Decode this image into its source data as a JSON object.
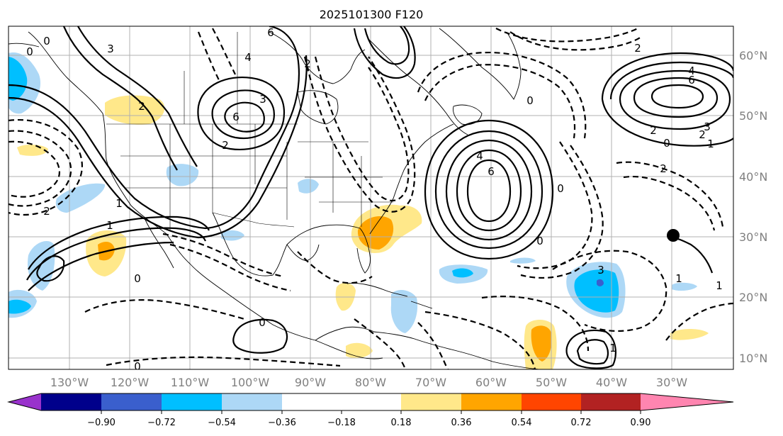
{
  "title": "2025101300 F120",
  "map": {
    "lon_labels": [
      "130°W",
      "120°W",
      "110°W",
      "100°W",
      "90°W",
      "80°W",
      "70°W",
      "60°W",
      "50°W",
      "40°W",
      "30°W"
    ],
    "lat_labels": [
      "60°N",
      "50°N",
      "40°N",
      "30°N",
      "20°N",
      "10°N"
    ],
    "contour_labels": [
      "0",
      "3",
      "2",
      "6",
      "4",
      "3",
      "2",
      "6",
      "0",
      "2",
      "4",
      "6",
      "0",
      "2",
      "2",
      "4",
      "6",
      "0",
      "2",
      "3",
      "2",
      "0",
      "0",
      "1",
      "1",
      "3",
      "0",
      "0",
      "0",
      "1",
      "1",
      "2",
      "1",
      "1"
    ],
    "marker": "black-dot"
  },
  "colorbar": {
    "tick_labels": [
      "−0.90",
      "−0.72",
      "−0.54",
      "−0.36",
      "−0.18",
      "0.18",
      "0.36",
      "0.54",
      "0.72",
      "0.90"
    ],
    "colors": [
      "#9932cc",
      "#00008b",
      "#3a5fcd",
      "#00bfff",
      "#add8f6",
      "#ffffff",
      "#ffe88a",
      "#ffa500",
      "#ff4500",
      "#b22222",
      "#ff85b0"
    ]
  }
}
